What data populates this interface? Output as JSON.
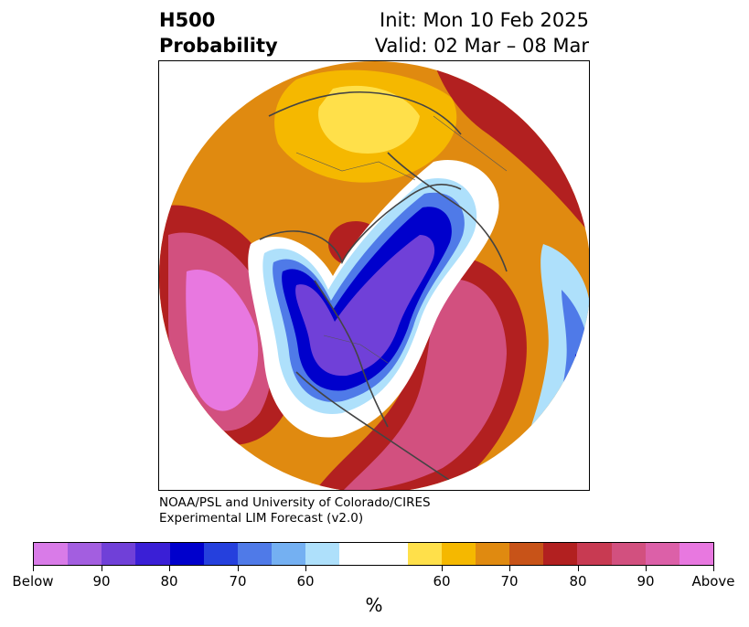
{
  "header": {
    "title_line1": "H500",
    "title_line2": "Probability",
    "init": "Init: Mon 10 Feb 2025",
    "valid": "Valid: 02 Mar – 08 Mar"
  },
  "credit": {
    "line1": "NOAA/PSL and University of Colorado/CIRES",
    "line2": "Experimental LIM Forecast (v2.0)"
  },
  "colorbar": {
    "unit": "%",
    "colors": [
      "#d97be8",
      "#a35ee0",
      "#7040d8",
      "#3a1fd6",
      "#0000cc",
      "#2540dd",
      "#4f7ae8",
      "#74b0f2",
      "#aee0fb",
      "#ffffff",
      "#ffe04a",
      "#f5b800",
      "#e08a10",
      "#c85318",
      "#b22020",
      "#c83a52",
      "#d2507f",
      "#dc60a8",
      "#e878e0"
    ],
    "tick_labels": [
      "Below",
      "90",
      "80",
      "70",
      "60",
      "60",
      "70",
      "80",
      "90",
      "Above"
    ]
  },
  "map": {
    "projection": "north-polar-stereographic",
    "colors": {
      "above_strong": "#e878e0",
      "above_90": "#d2507f",
      "above_80": "#b22020",
      "above_70": "#e08a10",
      "above_60": "#f5b800",
      "above_light": "#ffe04a",
      "below_60": "#aee0fb",
      "below_70": "#4f7ae8",
      "below_80": "#0000cc",
      "below_90": "#7040d8",
      "coast": "#444444"
    }
  }
}
